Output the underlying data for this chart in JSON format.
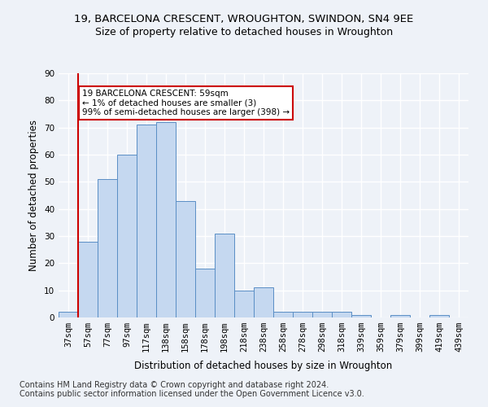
{
  "title1": "19, BARCELONA CRESCENT, WROUGHTON, SWINDON, SN4 9EE",
  "title2": "Size of property relative to detached houses in Wroughton",
  "xlabel": "Distribution of detached houses by size in Wroughton",
  "ylabel": "Number of detached properties",
  "categories": [
    "37sqm",
    "57sqm",
    "77sqm",
    "97sqm",
    "117sqm",
    "138sqm",
    "158sqm",
    "178sqm",
    "198sqm",
    "218sqm",
    "238sqm",
    "258sqm",
    "278sqm",
    "298sqm",
    "318sqm",
    "339sqm",
    "359sqm",
    "379sqm",
    "399sqm",
    "419sqm",
    "439sqm"
  ],
  "values": [
    2,
    28,
    51,
    60,
    71,
    72,
    43,
    18,
    31,
    10,
    11,
    2,
    2,
    2,
    2,
    1,
    0,
    1,
    0,
    1,
    0
  ],
  "bar_color": "#c5d8f0",
  "bar_edge_color": "#5a8ec5",
  "highlight_index": 1,
  "highlight_line_color": "#cc0000",
  "annotation_text": "19 BARCELONA CRESCENT: 59sqm\n← 1% of detached houses are smaller (3)\n99% of semi-detached houses are larger (398) →",
  "annotation_box_color": "#cc0000",
  "ylim": [
    0,
    90
  ],
  "yticks": [
    0,
    10,
    20,
    30,
    40,
    50,
    60,
    70,
    80,
    90
  ],
  "footer1": "Contains HM Land Registry data © Crown copyright and database right 2024.",
  "footer2": "Contains public sector information licensed under the Open Government Licence v3.0.",
  "bg_color": "#eef2f8",
  "grid_color": "#ffffff",
  "title1_fontsize": 9.5,
  "title2_fontsize": 9,
  "axis_label_fontsize": 8.5,
  "tick_fontsize": 7.5,
  "footer_fontsize": 7
}
